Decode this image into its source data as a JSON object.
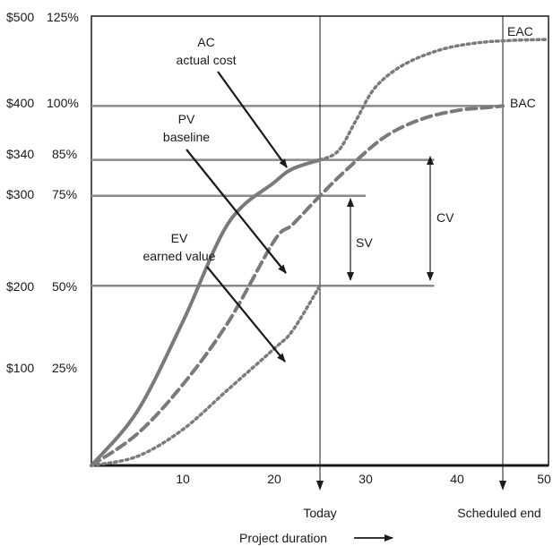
{
  "chart_data": {
    "type": "line",
    "title": "",
    "xlabel": "Project duration",
    "xlim": [
      0,
      50
    ],
    "ylim": [
      0,
      500
    ],
    "x_ticks": [
      10,
      20,
      30,
      40,
      50
    ],
    "y_ticks": [
      {
        "dollars": "$500",
        "percent": "125%",
        "value": 500
      },
      {
        "dollars": "$400",
        "percent": "100%",
        "value": 400
      },
      {
        "dollars": "$340",
        "percent": "85%",
        "value": 340
      },
      {
        "dollars": "$300",
        "percent": "75%",
        "value": 300
      },
      {
        "dollars": "$200",
        "percent": "50%",
        "value": 200
      },
      {
        "dollars": "$100",
        "percent": "25%",
        "value": 100
      }
    ],
    "markers": [
      {
        "label": "Today",
        "x": 25
      },
      {
        "label": "Scheduled end",
        "x": 45
      }
    ],
    "series": [
      {
        "name": "AC actual cost",
        "style": "solid",
        "x": [
          0,
          5,
          10,
          15,
          20,
          22,
          25
        ],
        "y": [
          0,
          60,
          160,
          270,
          315,
          330,
          340
        ]
      },
      {
        "name": "PV baseline",
        "style": "dashed",
        "x": [
          0,
          5,
          10,
          15,
          20,
          22,
          25,
          28,
          32,
          36,
          40,
          43,
          45
        ],
        "y": [
          0,
          35,
          90,
          160,
          250,
          268,
          300,
          330,
          365,
          385,
          395,
          398,
          400
        ]
      },
      {
        "name": "EV earned value",
        "style": "dotted",
        "x": [
          0,
          5,
          10,
          15,
          20,
          22,
          25
        ],
        "y": [
          0,
          10,
          40,
          85,
          130,
          150,
          200
        ]
      },
      {
        "name": "EAC",
        "style": "dotted",
        "x": [
          25,
          27,
          29,
          31,
          34,
          38,
          42,
          46,
          50
        ],
        "y": [
          340,
          350,
          385,
          420,
          445,
          462,
          470,
          473,
          474
        ]
      }
    ],
    "reference_lines": [
      {
        "y": 400,
        "x_from": 0,
        "x_to": 45
      },
      {
        "y": 340,
        "x_from": 0,
        "x_to": 37.5
      },
      {
        "y": 300,
        "x_from": 0,
        "x_to": 30
      },
      {
        "y": 200,
        "x_from": 0,
        "x_to": 37.5
      }
    ],
    "annotations": {
      "ac": [
        "AC",
        "actual cost"
      ],
      "pv": [
        "PV",
        "baseline"
      ],
      "ev": [
        "EV",
        "earned value"
      ],
      "eac": "EAC",
      "bac": "BAC",
      "sv": "SV",
      "cv": "CV"
    },
    "colors": {
      "curves": "#7a7a7a",
      "gridlines": "#8a8a8a",
      "axes": "#1a1a1a"
    },
    "grid": false,
    "legend": "none"
  }
}
